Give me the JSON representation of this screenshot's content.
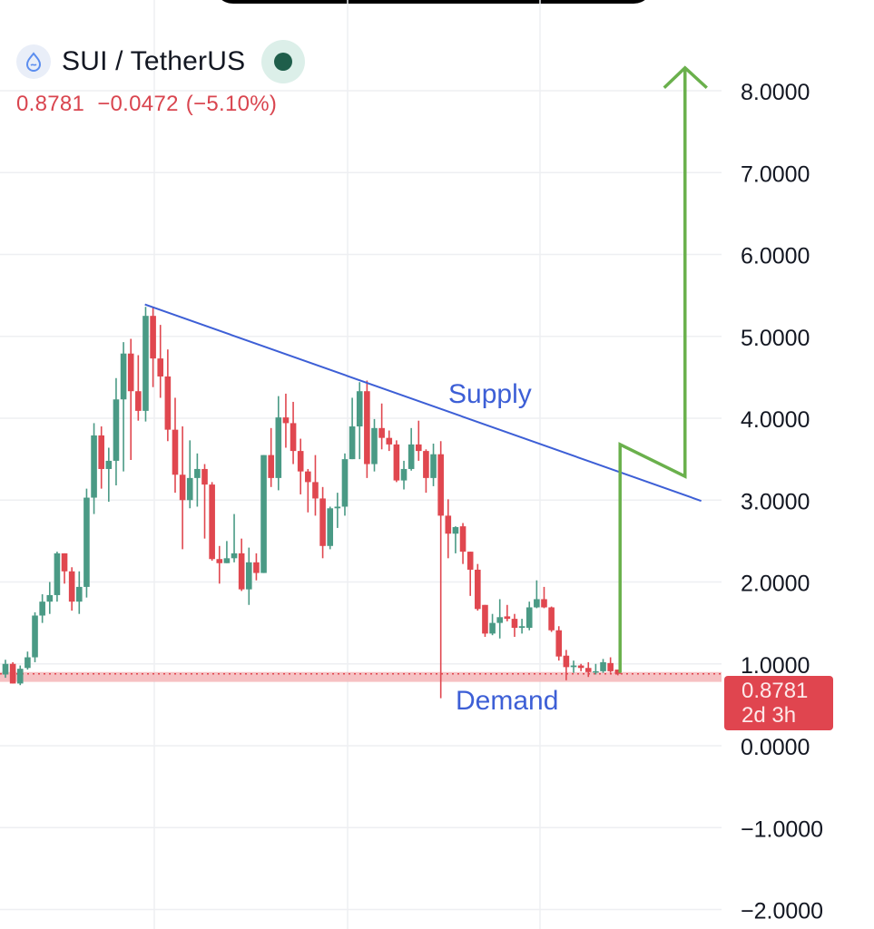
{
  "header": {
    "symbol": "SUI / TetherUS",
    "symbol_icon": "sui-drop-icon",
    "status_icon": "market-status-dot",
    "last_price": "0.8781",
    "change": "−0.0472",
    "change_pct": "(−5.10%)"
  },
  "price_label": {
    "value": "0.8781",
    "countdown": "2d 3h"
  },
  "colors": {
    "up": "#4a9a85",
    "down": "#e0474f",
    "supply_line": "#3d5fd6",
    "projection": "#6ab04c",
    "demand_zone": "#f4b6b8",
    "price_box": "#e0454f"
  },
  "chart_data": {
    "type": "candlestick",
    "title": "SUI / TetherUS",
    "ylim": [
      -2,
      8
    ],
    "y_ticks": [
      "8.0000",
      "7.0000",
      "6.0000",
      "5.0000",
      "4.0000",
      "3.0000",
      "2.0000",
      "1.0000",
      "0.0000",
      "−1.0000",
      "−2.0000"
    ],
    "y_tick_values": [
      8,
      7,
      6,
      5,
      4,
      3,
      2,
      1,
      0,
      -1,
      -2
    ],
    "grid": true,
    "ohlc": [
      [
        0.87,
        1.05,
        0.83,
        1.0
      ],
      [
        1.0,
        1.02,
        0.76,
        0.76
      ],
      [
        0.76,
        0.98,
        0.74,
        0.94
      ],
      [
        0.95,
        1.15,
        0.93,
        1.08
      ],
      [
        1.08,
        1.63,
        1.02,
        1.59
      ],
      [
        1.59,
        1.85,
        1.5,
        1.76
      ],
      [
        1.76,
        2.0,
        1.61,
        1.84
      ],
      [
        1.84,
        2.37,
        1.76,
        2.35
      ],
      [
        2.35,
        2.35,
        1.98,
        2.13
      ],
      [
        2.13,
        2.18,
        1.65,
        1.76
      ],
      [
        1.76,
        2.13,
        1.61,
        1.94
      ],
      [
        1.94,
        3.14,
        1.81,
        3.03
      ],
      [
        3.03,
        3.94,
        2.83,
        3.79
      ],
      [
        3.79,
        3.9,
        3.14,
        3.38
      ],
      [
        3.38,
        3.64,
        2.98,
        3.48
      ],
      [
        3.48,
        4.49,
        3.18,
        4.23
      ],
      [
        4.23,
        4.93,
        3.35,
        4.79
      ],
      [
        4.79,
        4.97,
        3.49,
        4.33
      ],
      [
        4.33,
        4.77,
        3.97,
        4.09
      ],
      [
        4.09,
        5.36,
        3.96,
        5.25
      ],
      [
        5.25,
        5.36,
        4.38,
        4.73
      ],
      [
        4.73,
        5.14,
        4.25,
        4.51
      ],
      [
        4.51,
        4.84,
        3.72,
        3.86
      ],
      [
        3.86,
        4.25,
        3.09,
        3.31
      ],
      [
        3.31,
        3.9,
        2.4,
        3.0
      ],
      [
        3.0,
        3.73,
        2.9,
        3.27
      ],
      [
        3.27,
        3.57,
        2.92,
        3.38
      ],
      [
        3.38,
        3.44,
        2.53,
        3.19
      ],
      [
        3.19,
        3.22,
        2.26,
        2.28
      ],
      [
        2.28,
        2.44,
        1.98,
        2.23
      ],
      [
        2.23,
        2.5,
        2.23,
        2.29
      ],
      [
        2.29,
        2.83,
        2.24,
        2.35
      ],
      [
        2.35,
        2.53,
        1.89,
        1.91
      ],
      [
        1.91,
        2.42,
        1.72,
        2.24
      ],
      [
        2.24,
        2.35,
        2.02,
        2.11
      ],
      [
        2.11,
        3.55,
        2.11,
        3.55
      ],
      [
        3.55,
        3.88,
        3.16,
        3.27
      ],
      [
        3.27,
        4.27,
        3.12,
        4.01
      ],
      [
        4.01,
        4.3,
        3.64,
        3.94
      ],
      [
        3.94,
        4.2,
        3.44,
        3.6
      ],
      [
        3.6,
        3.75,
        3.07,
        3.35
      ],
      [
        3.35,
        3.38,
        2.85,
        3.22
      ],
      [
        3.22,
        3.55,
        2.81,
        3.02
      ],
      [
        3.02,
        3.16,
        2.29,
        2.44
      ],
      [
        2.44,
        2.92,
        2.4,
        2.9
      ],
      [
        2.9,
        3.09,
        2.66,
        2.92
      ],
      [
        2.92,
        3.57,
        2.81,
        3.5
      ],
      [
        3.5,
        4.25,
        3.5,
        3.9
      ],
      [
        3.9,
        4.44,
        3.5,
        4.33
      ],
      [
        4.33,
        4.46,
        3.27,
        3.44
      ],
      [
        3.44,
        3.99,
        3.35,
        3.88
      ],
      [
        3.88,
        4.18,
        3.62,
        3.76
      ],
      [
        3.76,
        3.85,
        3.6,
        3.68
      ],
      [
        3.68,
        3.73,
        3.22,
        3.24
      ],
      [
        3.24,
        3.48,
        3.13,
        3.38
      ],
      [
        3.38,
        3.88,
        3.36,
        3.68
      ],
      [
        3.68,
        3.97,
        3.48,
        3.6
      ],
      [
        3.6,
        3.62,
        3.09,
        3.27
      ],
      [
        3.27,
        3.69,
        3.17,
        3.56
      ],
      [
        3.56,
        3.72,
        0.58,
        2.81
      ],
      [
        2.81,
        3.01,
        2.29,
        2.59
      ],
      [
        2.59,
        2.68,
        2.35,
        2.67
      ],
      [
        2.68,
        2.72,
        2.22,
        2.37
      ],
      [
        2.37,
        2.37,
        1.83,
        2.15
      ],
      [
        2.15,
        2.22,
        1.65,
        1.67
      ],
      [
        1.72,
        1.72,
        1.33,
        1.37
      ],
      [
        1.37,
        1.61,
        1.35,
        1.5
      ],
      [
        1.5,
        1.79,
        1.31,
        1.57
      ],
      [
        1.58,
        1.72,
        1.52,
        1.55
      ],
      [
        1.55,
        1.61,
        1.33,
        1.44
      ],
      [
        1.44,
        1.55,
        1.37,
        1.46
      ],
      [
        1.44,
        1.76,
        1.41,
        1.69
      ],
      [
        1.69,
        2.02,
        1.68,
        1.79
      ],
      [
        1.79,
        1.94,
        1.68,
        1.69
      ],
      [
        1.69,
        1.7,
        1.39,
        1.41
      ],
      [
        1.41,
        1.46,
        1.04,
        1.09
      ],
      [
        1.1,
        1.17,
        0.8,
        0.96
      ],
      [
        0.96,
        1.04,
        0.89,
        0.98
      ],
      [
        0.98,
        1.0,
        0.91,
        0.95
      ],
      [
        0.95,
        1.02,
        0.84,
        0.9
      ],
      [
        0.9,
        1.0,
        0.87,
        0.91
      ],
      [
        0.91,
        1.06,
        0.89,
        1.02
      ],
      [
        1.01,
        1.08,
        0.89,
        0.91
      ],
      [
        0.93,
        0.93,
        0.86,
        0.8781
      ]
    ],
    "last_price": 0.8781,
    "annotations": {
      "supply": {
        "label": "Supply",
        "from": {
          "bar": 18.9,
          "price": 5.39
        },
        "to": {
          "bar": 94.3,
          "price": 2.99
        }
      },
      "demand": {
        "label": "Demand",
        "price_low": 0.78,
        "price_high": 0.9
      },
      "projection": {
        "points": [
          {
            "bar": 83.3,
            "price": 0.89
          },
          {
            "bar": 83.3,
            "price": 3.68
          },
          {
            "bar": 92.1,
            "price": 3.29
          },
          {
            "bar": 92.1,
            "price": 8.28
          }
        ]
      }
    }
  }
}
